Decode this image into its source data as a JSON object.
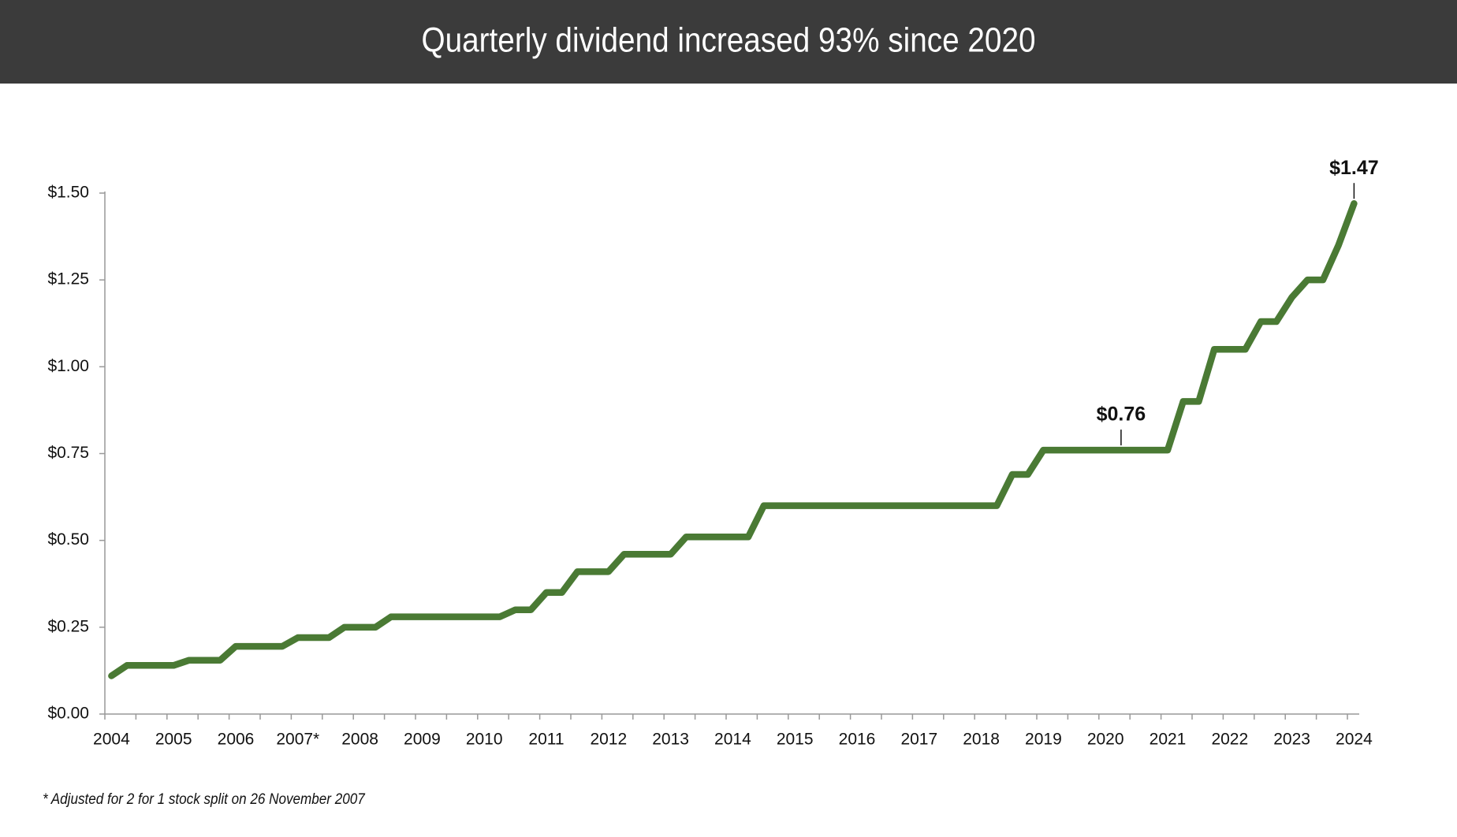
{
  "chart_data": {
    "type": "line",
    "title": "Quarterly dividend increased 93% since 2020",
    "footnote": "* Adjusted for 2 for 1 stock split on 26 November 2007",
    "categories": [
      "2004",
      null,
      null,
      null,
      "2005",
      null,
      null,
      null,
      "2006",
      null,
      null,
      null,
      "2007*",
      null,
      null,
      null,
      "2008",
      null,
      null,
      null,
      "2009",
      null,
      null,
      null,
      "2010",
      null,
      null,
      null,
      "2011",
      null,
      null,
      null,
      "2012",
      null,
      null,
      null,
      "2013",
      null,
      null,
      null,
      "2014",
      null,
      null,
      null,
      "2015",
      null,
      null,
      null,
      "2016",
      null,
      null,
      null,
      "2017",
      null,
      null,
      null,
      "2018",
      null,
      null,
      null,
      "2019",
      null,
      null,
      null,
      "2020",
      null,
      null,
      null,
      "2021",
      null,
      null,
      null,
      "2022",
      null,
      null,
      null,
      "2023",
      null,
      null,
      null,
      "2024"
    ],
    "series": [
      {
        "color": "#4a7a34",
        "values": [
          0.11,
          0.14,
          0.14,
          0.14,
          0.14,
          0.155,
          0.155,
          0.155,
          0.195,
          0.195,
          0.195,
          0.195,
          0.22,
          0.22,
          0.22,
          0.25,
          0.25,
          0.25,
          0.28,
          0.28,
          0.28,
          0.28,
          0.28,
          0.28,
          0.28,
          0.28,
          0.3,
          0.3,
          0.35,
          0.35,
          0.41,
          0.41,
          0.41,
          0.46,
          0.46,
          0.46,
          0.46,
          0.51,
          0.51,
          0.51,
          0.51,
          0.51,
          0.6,
          0.6,
          0.6,
          0.6,
          0.6,
          0.6,
          0.6,
          0.6,
          0.6,
          0.6,
          0.6,
          0.6,
          0.6,
          0.6,
          0.6,
          0.6,
          0.69,
          0.69,
          0.76,
          0.76,
          0.76,
          0.76,
          0.76,
          0.76,
          0.76,
          0.76,
          0.76,
          0.9,
          0.9,
          1.05,
          1.05,
          1.05,
          1.13,
          1.13,
          1.2,
          1.25,
          1.25,
          1.35,
          1.47
        ],
        "value_labels": [
          null,
          null,
          null,
          null,
          null,
          null,
          null,
          null,
          null,
          null,
          null,
          null,
          null,
          null,
          null,
          null,
          null,
          null,
          null,
          null,
          null,
          null,
          null,
          null,
          null,
          null,
          null,
          null,
          null,
          null,
          null,
          null,
          null,
          null,
          null,
          null,
          null,
          null,
          null,
          null,
          null,
          null,
          null,
          null,
          null,
          null,
          null,
          null,
          null,
          null,
          null,
          null,
          null,
          null,
          null,
          null,
          null,
          null,
          null,
          null,
          null,
          null,
          null,
          null,
          null,
          "$0.76",
          null,
          null,
          null,
          null,
          null,
          null,
          null,
          null,
          null,
          null,
          null,
          null,
          null,
          null,
          "$1.47"
        ]
      }
    ],
    "ylim": [
      0,
      1.5
    ],
    "yticks": [
      {
        "value": 0,
        "label": "$0.00"
      },
      {
        "value": 0.25,
        "label": "$0.25"
      },
      {
        "value": 0.5,
        "label": "$0.50"
      },
      {
        "value": 0.75,
        "label": "$0.75"
      },
      {
        "value": 1.0,
        "label": "$1.00"
      },
      {
        "value": 1.25,
        "label": "$1.25"
      },
      {
        "value": 1.5,
        "label": "$1.50"
      }
    ],
    "grid": false
  }
}
